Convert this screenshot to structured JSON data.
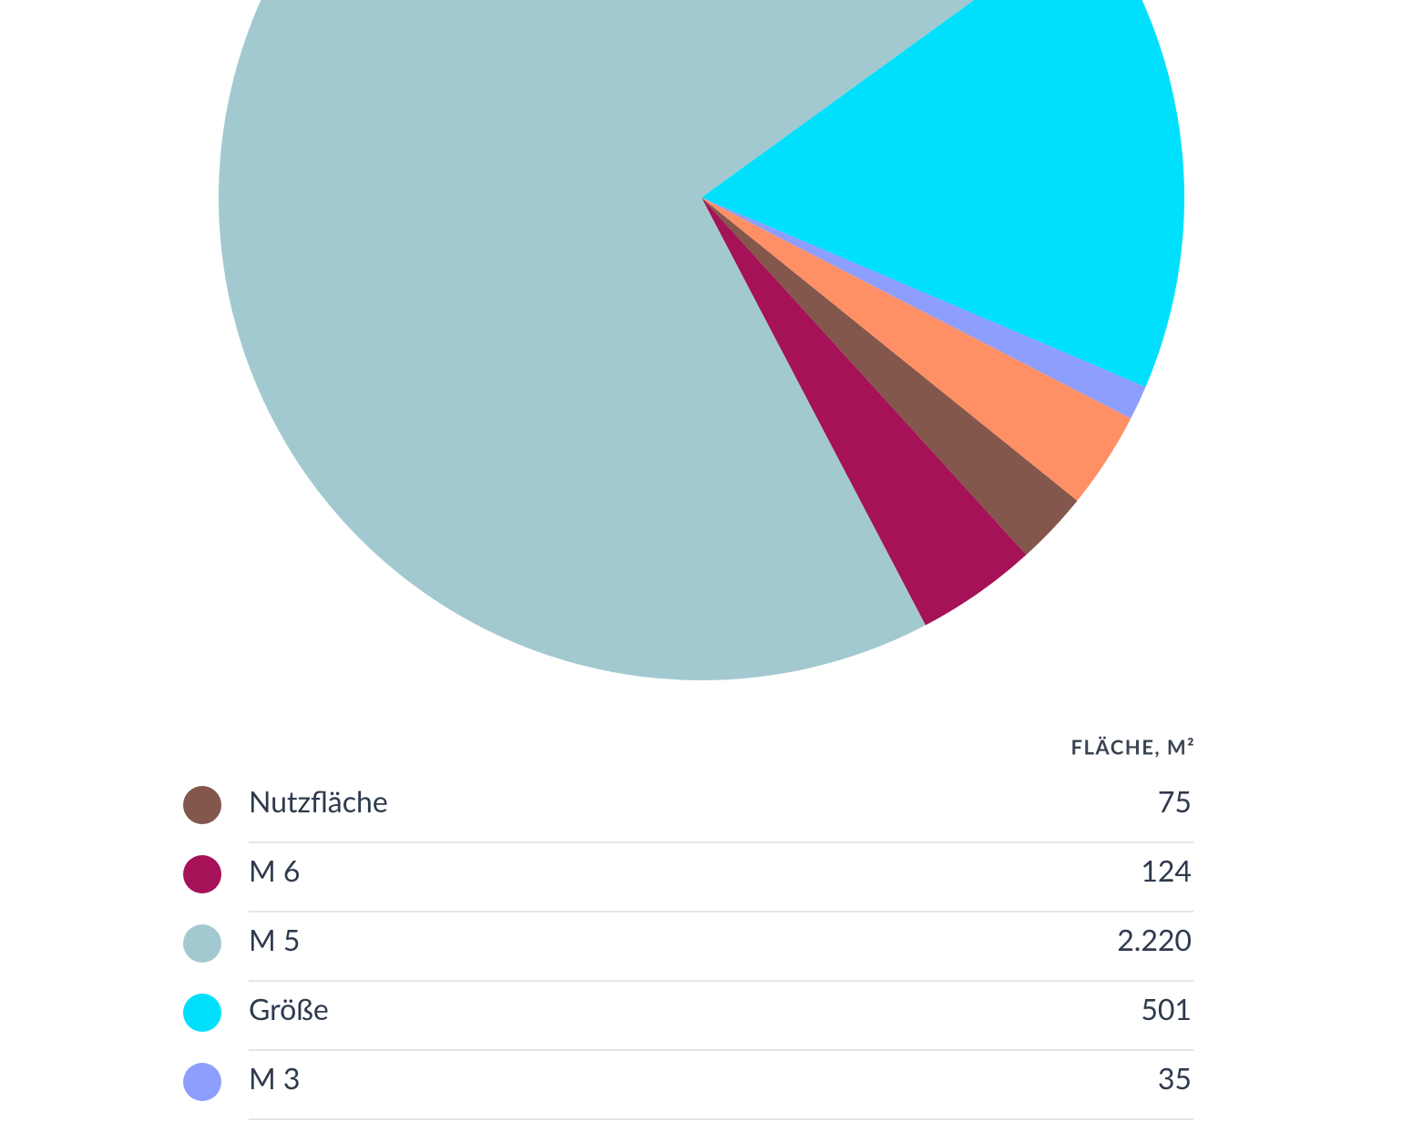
{
  "chart_data": {
    "type": "pie",
    "value_header": "FLÄCHE, M²",
    "categories": [
      "Nutzfläche",
      "M 6",
      "M 5",
      "Größe",
      "M 3",
      null
    ],
    "values": [
      75,
      124,
      2220,
      501,
      35,
      99
    ],
    "value_labels": [
      "75",
      "124",
      "2.220",
      "501",
      "35",
      null
    ],
    "colors": [
      "#83574c",
      "#a51257",
      "#a2c9d0",
      "#00e0fd",
      "#8e9efc",
      "#ff9066"
    ]
  }
}
